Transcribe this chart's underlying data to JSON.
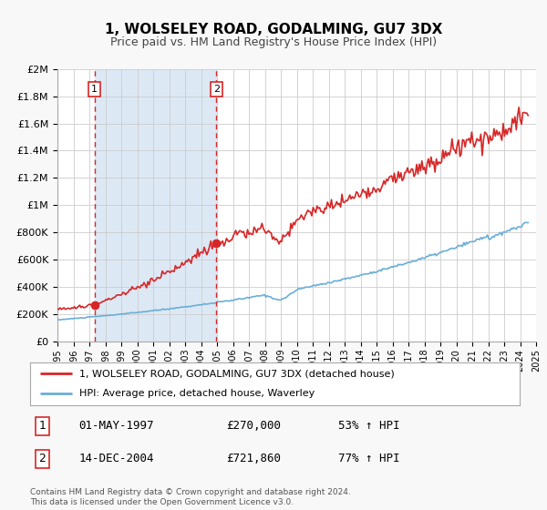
{
  "title": "1, WOLSELEY ROAD, GODALMING, GU7 3DX",
  "subtitle": "Price paid vs. HM Land Registry's House Price Index (HPI)",
  "legend_line1": "1, WOLSELEY ROAD, GODALMING, GU7 3DX (detached house)",
  "legend_line2": "HPI: Average price, detached house, Waverley",
  "annotation1_label": "1",
  "annotation1_date": "01-MAY-1997",
  "annotation1_price": "£270,000",
  "annotation1_hpi": "53% ↑ HPI",
  "annotation1_year": 1997.33,
  "annotation1_value": 270000,
  "annotation2_label": "2",
  "annotation2_date": "14-DEC-2004",
  "annotation2_price": "£721,860",
  "annotation2_hpi": "77% ↑ HPI",
  "annotation2_year": 2004.96,
  "annotation2_value": 721860,
  "hpi_color": "#6baed6",
  "price_color": "#d62728",
  "shaded_color": "#dce9f5",
  "vline_color": "#d62728",
  "grid_color": "#cccccc",
  "background_color": "#f8f8f8",
  "plot_bg_color": "#ffffff",
  "footer_text": "Contains HM Land Registry data © Crown copyright and database right 2024.\nThis data is licensed under the Open Government Licence v3.0.",
  "ylim": [
    0,
    2000000
  ],
  "yticks": [
    0,
    200000,
    400000,
    600000,
    800000,
    1000000,
    1200000,
    1400000,
    1600000,
    1800000,
    2000000
  ],
  "xlim_start": 1995,
  "xlim_end": 2025
}
